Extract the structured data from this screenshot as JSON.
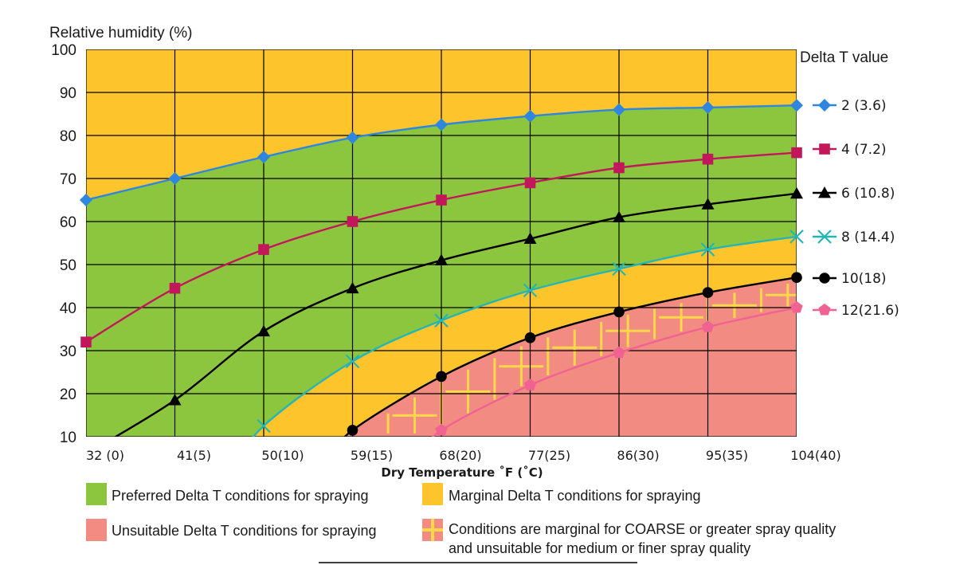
{
  "chart_data": {
    "type": "line",
    "ylabel": "Relative humidity (%)",
    "xlabel": "Dry Temperature ˚F (˚C)",
    "ylim": [
      10,
      100
    ],
    "yticks": [
      "10",
      "20",
      "30",
      "40",
      "50",
      "60",
      "70",
      "80",
      "90",
      "100"
    ],
    "categories": [
      "32 (0)",
      "41(5)",
      "50(10)",
      "59(15)",
      "68(20)",
      "77(25)",
      "86(30)",
      "95(35)",
      "104(40)"
    ],
    "legend_title": "Delta T value",
    "legend_position": "right",
    "grid": true,
    "colors": {
      "preferred": "#8cc63f",
      "marginal": "#fdc52b",
      "unsuitable": "#f28b82",
      "hatch": "#ffd84a"
    },
    "series": [
      {
        "name": "2 (3.6)",
        "color": "#2e86de",
        "marker": "diamond",
        "values": [
          65,
          70,
          75,
          79.5,
          82.5,
          84.5,
          86,
          86.5,
          87
        ]
      },
      {
        "name": "4 (7.2)",
        "color": "#c2185b",
        "marker": "square",
        "values": [
          32,
          44.5,
          53.5,
          60,
          65,
          69,
          72.5,
          74.5,
          76
        ]
      },
      {
        "name": "6 (10.8)",
        "color": "#000000",
        "marker": "triangle",
        "values": [
          6,
          18.5,
          34.5,
          44.5,
          51,
          56,
          61,
          64,
          66.5
        ]
      },
      {
        "name": "8 (14.4)",
        "color": "#26b5b5",
        "marker": "x",
        "values": [
          null,
          null,
          12.5,
          27.5,
          37,
          44,
          49,
          53.5,
          56.5
        ]
      },
      {
        "name": "10(18)",
        "color": "#000000",
        "marker": "circle",
        "values": [
          null,
          null,
          null,
          11.5,
          24,
          33,
          39,
          43.5,
          47
        ]
      },
      {
        "name": "12(21.6)",
        "color": "#f06292",
        "marker": "pentagon",
        "values": [
          null,
          null,
          null,
          null,
          11.5,
          22,
          29.5,
          35.5,
          40
        ]
      }
    ]
  },
  "key": {
    "preferred": "Preferred Delta T conditions for spraying",
    "marginal": "Marginal Delta T conditions for spraying",
    "unsuitable": "Unsuitable Delta T conditions for spraying",
    "hatched_line1": "Conditions are marginal for COARSE or greater spray quality",
    "hatched_line2": "and unsuitable for medium or finer spray quality"
  }
}
